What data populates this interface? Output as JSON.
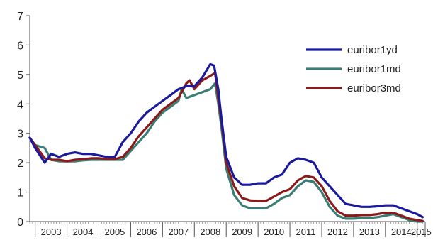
{
  "chart_data": {
    "type": "line",
    "title": "",
    "xlabel": "",
    "ylabel": "",
    "ylim": [
      0,
      7
    ],
    "yticks": [
      "0",
      "1",
      "2",
      "3",
      "4",
      "5",
      "6",
      "7"
    ],
    "xticks": [
      "2003",
      "2004",
      "2005",
      "2006",
      "2007",
      "2008",
      "2009",
      "2010",
      "2011",
      "2012",
      "2013",
      "2014",
      "2015"
    ],
    "x_range": [
      2002.83,
      2015.25
    ],
    "grid": false,
    "legend_position": "top-right",
    "series": [
      {
        "name": "euribor1yd",
        "color": "#1a1a9c",
        "x": [
          2002.83,
          2003.0,
          2003.3,
          2003.5,
          2003.75,
          2004.0,
          2004.25,
          2004.5,
          2004.75,
          2005.0,
          2005.25,
          2005.5,
          2005.75,
          2006.0,
          2006.25,
          2006.5,
          2006.75,
          2007.0,
          2007.25,
          2007.5,
          2007.75,
          2008.0,
          2008.25,
          2008.5,
          2008.62,
          2008.75,
          2008.85,
          2009.0,
          2009.25,
          2009.5,
          2009.75,
          2010.0,
          2010.25,
          2010.5,
          2010.75,
          2011.0,
          2011.25,
          2011.5,
          2011.75,
          2012.0,
          2012.25,
          2012.5,
          2012.75,
          2013.0,
          2013.25,
          2013.5,
          2013.75,
          2014.0,
          2014.25,
          2014.5,
          2014.75,
          2015.0,
          2015.17
        ],
        "values": [
          2.85,
          2.5,
          2.0,
          2.3,
          2.2,
          2.3,
          2.35,
          2.3,
          2.3,
          2.25,
          2.2,
          2.2,
          2.7,
          3.0,
          3.4,
          3.7,
          3.9,
          4.1,
          4.3,
          4.5,
          4.6,
          4.6,
          4.9,
          5.35,
          5.3,
          4.5,
          3.5,
          2.2,
          1.5,
          1.25,
          1.25,
          1.3,
          1.3,
          1.5,
          1.6,
          2.0,
          2.15,
          2.1,
          2.0,
          1.5,
          1.2,
          0.9,
          0.6,
          0.55,
          0.5,
          0.5,
          0.52,
          0.55,
          0.55,
          0.45,
          0.35,
          0.25,
          0.15
        ]
      },
      {
        "name": "euribor1md",
        "color": "#3a7d74",
        "x": [
          2002.83,
          2003.0,
          2003.3,
          2003.5,
          2003.75,
          2004.0,
          2004.25,
          2004.5,
          2004.75,
          2005.0,
          2005.25,
          2005.5,
          2005.75,
          2006.0,
          2006.25,
          2006.5,
          2006.75,
          2007.0,
          2007.25,
          2007.5,
          2007.6,
          2007.75,
          2008.0,
          2008.25,
          2008.5,
          2008.65,
          2008.75,
          2008.85,
          2009.0,
          2009.25,
          2009.5,
          2009.75,
          2010.0,
          2010.25,
          2010.5,
          2010.75,
          2011.0,
          2011.25,
          2011.5,
          2011.75,
          2012.0,
          2012.25,
          2012.5,
          2012.75,
          2013.0,
          2013.25,
          2013.5,
          2013.75,
          2014.0,
          2014.25,
          2014.5,
          2014.75,
          2015.0,
          2015.17
        ],
        "values": [
          2.85,
          2.6,
          2.5,
          2.1,
          2.05,
          2.05,
          2.05,
          2.08,
          2.1,
          2.1,
          2.1,
          2.1,
          2.1,
          2.4,
          2.7,
          3.0,
          3.4,
          3.7,
          3.9,
          4.1,
          4.5,
          4.2,
          4.3,
          4.4,
          4.5,
          4.7,
          4.0,
          3.2,
          1.8,
          0.9,
          0.55,
          0.45,
          0.45,
          0.45,
          0.6,
          0.8,
          0.9,
          1.2,
          1.4,
          1.35,
          1.0,
          0.5,
          0.2,
          0.1,
          0.1,
          0.12,
          0.12,
          0.15,
          0.2,
          0.25,
          0.15,
          0.05,
          0.0,
          0.0
        ]
      },
      {
        "name": "euribor3md",
        "color": "#8b1a1a",
        "x": [
          2002.83,
          2003.0,
          2003.3,
          2003.5,
          2003.75,
          2004.0,
          2004.25,
          2004.5,
          2004.75,
          2005.0,
          2005.25,
          2005.5,
          2005.75,
          2006.0,
          2006.25,
          2006.5,
          2006.75,
          2007.0,
          2007.25,
          2007.5,
          2007.75,
          2007.85,
          2008.0,
          2008.25,
          2008.5,
          2008.65,
          2008.75,
          2008.85,
          2009.0,
          2009.25,
          2009.5,
          2009.75,
          2010.0,
          2010.25,
          2010.5,
          2010.75,
          2011.0,
          2011.25,
          2011.5,
          2011.75,
          2012.0,
          2012.25,
          2012.5,
          2012.75,
          2013.0,
          2013.25,
          2013.5,
          2013.75,
          2014.0,
          2014.25,
          2014.5,
          2014.75,
          2015.0,
          2015.17
        ],
        "values": [
          2.85,
          2.6,
          2.15,
          2.1,
          2.1,
          2.05,
          2.1,
          2.12,
          2.15,
          2.15,
          2.12,
          2.12,
          2.2,
          2.5,
          2.9,
          3.2,
          3.5,
          3.8,
          4.0,
          4.2,
          4.7,
          4.8,
          4.5,
          4.8,
          4.95,
          5.05,
          4.2,
          3.4,
          2.0,
          1.2,
          0.8,
          0.72,
          0.7,
          0.7,
          0.85,
          1.0,
          1.1,
          1.4,
          1.55,
          1.5,
          1.2,
          0.7,
          0.35,
          0.2,
          0.2,
          0.22,
          0.22,
          0.25,
          0.3,
          0.3,
          0.2,
          0.1,
          0.05,
          0.02
        ]
      }
    ]
  }
}
